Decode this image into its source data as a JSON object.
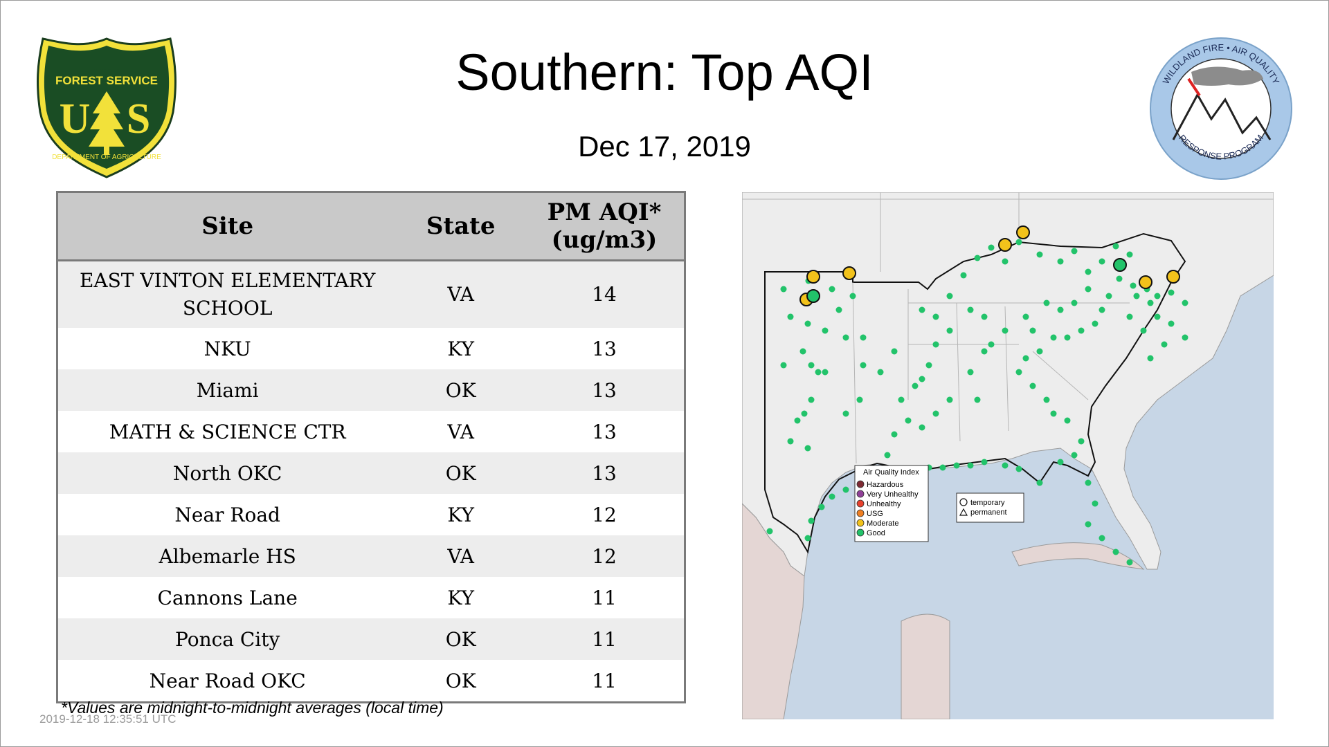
{
  "title": "Southern: Top AQI",
  "date": "Dec 17, 2019",
  "logos": {
    "left": {
      "top_text": "FOREST SERVICE",
      "letters": "U S",
      "bottom_text": "DEPARTMENT OF AGRICULTURE"
    },
    "right": {
      "top_text": "WILDLAND FIRE • AIR QUALITY",
      "bottom_text": "RESPONSE PROGRAM"
    }
  },
  "table": {
    "headers": {
      "site": "Site",
      "state": "State",
      "aqi_line1": "PM AQI*",
      "aqi_line2": "(ug/m3)"
    },
    "rows": [
      {
        "site_line1": "EAST VINTON ELEMENTARY",
        "site_line2": "SCHOOL",
        "state": "VA",
        "aqi": "14"
      },
      {
        "site": "NKU",
        "state": "KY",
        "aqi": "13"
      },
      {
        "site": "Miami",
        "state": "OK",
        "aqi": "13"
      },
      {
        "site": "MATH & SCIENCE CTR",
        "state": "VA",
        "aqi": "13"
      },
      {
        "site": "North OKC",
        "state": "OK",
        "aqi": "13"
      },
      {
        "site": "Near Road",
        "state": "KY",
        "aqi": "12"
      },
      {
        "site": "Albemarle HS",
        "state": "VA",
        "aqi": "12"
      },
      {
        "site": "Cannons Lane",
        "state": "KY",
        "aqi": "11"
      },
      {
        "site": "Ponca City",
        "state": "OK",
        "aqi": "11"
      },
      {
        "site": "Near Road OKC",
        "state": "OK",
        "aqi": "11"
      }
    ]
  },
  "footnote": "*Values are midnight-to-midnight averages (local time)",
  "timestamp": "2019-12-18 12:35:51 UTC",
  "map": {
    "legend": {
      "title": "Air Quality Index",
      "items": [
        {
          "label": "Hazardous",
          "color": "#7e2a33"
        },
        {
          "label": "Very Unhealthy",
          "color": "#8f3f97"
        },
        {
          "label": "Unhealthy",
          "color": "#e8412d"
        },
        {
          "label": "USG",
          "color": "#f07f22"
        },
        {
          "label": "Moderate",
          "color": "#f2c21b"
        },
        {
          "label": "Good",
          "color": "#22c36a"
        }
      ]
    },
    "shape_legend": {
      "temporary": "temporary",
      "permanent": "permanent"
    },
    "colors": {
      "ocean": "#c7d6e6",
      "land": "#ededed",
      "good": "#22c36a",
      "moderate": "#f2c21b"
    }
  }
}
